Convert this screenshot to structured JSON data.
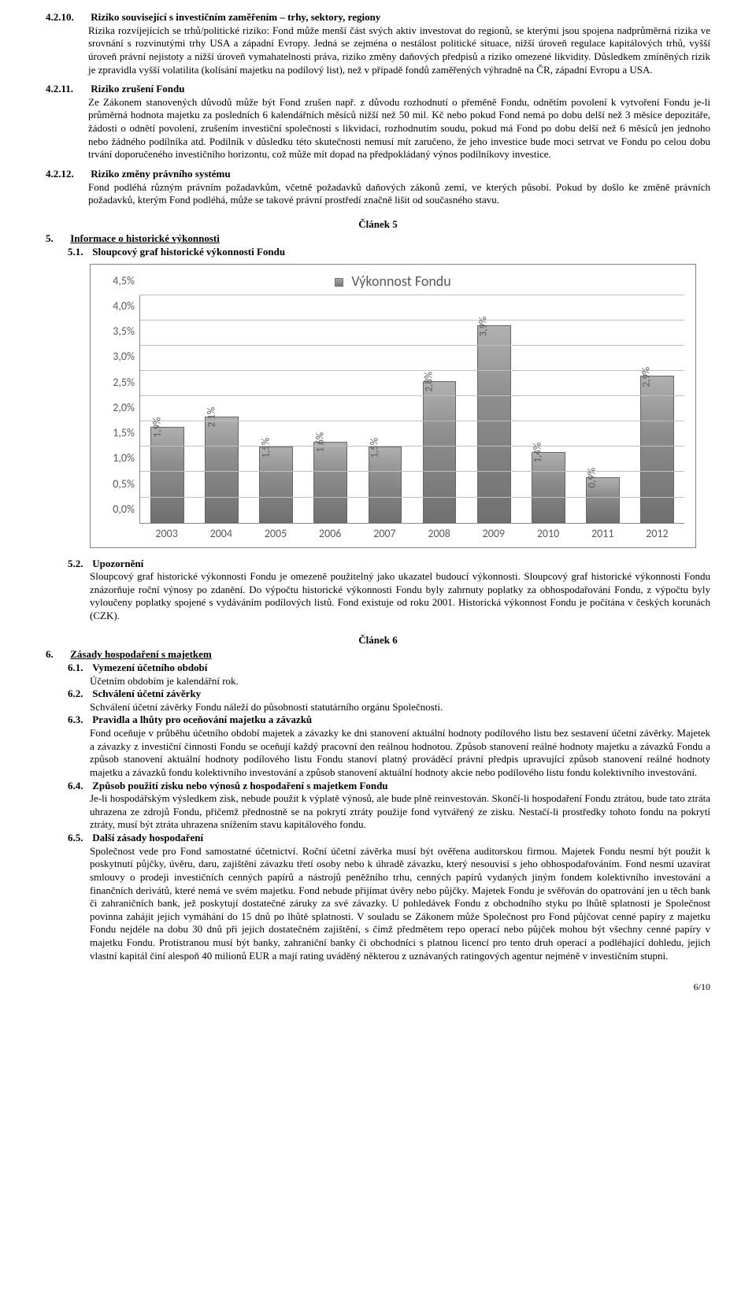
{
  "sec4210": {
    "num": "4.2.10.",
    "title": "Riziko související s investičním zaměřením – trhy, sektory, regiony",
    "body": "Rizika rozvíjejících se trhů/politické riziko: Fond může menší část svých aktiv investovat do regionů, se kterými jsou spojena nadprůměrná rizika ve srovnání s rozvinutými trhy USA a západní Evropy. Jedná se zejména o nestálost politické situace, nižší úroveň regulace kapitálových trhů, vyšší úroveň právní nejistoty a nižší úroveň vymahatelnosti práva, riziko změny daňových předpisů a riziko omezené likvidity. Důsledkem zmíněných rizik je zpravidla vyšší volatilita (kolísání majetku na podílový list), než v případě fondů zaměřených výhradně na ČR, západní Evropu a USA."
  },
  "sec4211": {
    "num": "4.2.11.",
    "title": "Riziko zrušení Fondu",
    "body": "Ze Zákonem stanovených důvodů  může být Fond zrušen např. z důvodu rozhodnutí o přeměně Fondu, odnětím povolení k vytvoření Fondu je-li průměrná hodnota majetku za posledních 6 kalendářních měsíců nižší než 50 mil. Kč nebo pokud Fond nemá po dobu delší než 3 měsíce depozitáře, žádosti o odnětí povolení, zrušením investiční společnosti s likvidací, rozhodnutím soudu, pokud má Fond po dobu delší než 6 měsíců jen jednoho nebo žádného podílníka  atd. Podílník v důsledku této skutečnosti nemusí mít zaručeno, že jeho investice bude moci setrvat ve Fondu po celou dobu trvání doporučeného investičního horizontu, což může mít dopad na předpokládaný výnos podílníkovy investice."
  },
  "sec4212": {
    "num": "4.2.12.",
    "title": "Riziko změny právního systému",
    "body": "Fond podléhá různým právním požadavkům, včetně požadavků daňových zákonů zemí, ve kterých působí. Pokud by došlo ke změně právních požadavků, kterým Fond podléhá, může se takové právní prostředí značně lišit od současného stavu."
  },
  "article5": "Článek 5",
  "sec5": {
    "num": "5.",
    "title": "Informace o historické výkonnosti"
  },
  "sec51": {
    "num": "5.1.",
    "title": "Sloupcový graf historické výkonnosti Fondu"
  },
  "sec52": {
    "num": "5.2.",
    "title": "Upozornění",
    "body": "Sloupcový graf historické výkonnosti Fondu je omezeně použitelný jako ukazatel budoucí výkonnosti. Sloupcový graf historické výkonnosti Fondu znázorňuje roční výnosy po zdanění. Do výpočtu historické výkonnosti Fondu byly zahrnuty poplatky za obhospodařování Fondu, z výpočtu byly vyloučeny poplatky spojené s vydáváním podílových listů. Fond existuje od roku 2001. Historická výkonnost Fondu je počítána v českých korunách (CZK)."
  },
  "article6": "Článek 6",
  "sec6": {
    "num": "6.",
    "title": "Zásady hospodaření s majetkem"
  },
  "sec61": {
    "num": "6.1.",
    "title": "Vymezení účetního období",
    "body": "Účetním obdobím je kalendářní rok."
  },
  "sec62": {
    "num": "6.2.",
    "title": "Schválení účetní závěrky",
    "body": "Schválení účetní závěrky Fondu náleží do působnosti statutárního orgánu Společnosti."
  },
  "sec63": {
    "num": "6.3.",
    "title": "Pravidla a lhůty pro oceňování majetku a závazků",
    "body": "Fond oceňuje v průběhu účetního období majetek a závazky ke dni stanovení aktuální hodnoty podílového listu bez sestavení účetní závěrky. Majetek a závazky z investiční činnosti Fondu se oceňují každý pracovní den reálnou hodnotou. Způsob stanovení reálné hodnoty majetku a závazků Fondu a způsob stanovení aktuální hodnoty podílového listu Fondu stanoví platný prováděcí právní předpis upravující způsob stanovení reálné hodnoty majetku a závazků fondu kolektivního investování a způsob stanovení aktuální hodnoty akcie nebo podílového listu fondu kolektivního investování."
  },
  "sec64": {
    "num": "6.4.",
    "title": "Způsob použití zisku nebo výnosů z hospodaření s majetkem Fondu",
    "body": "Je-li hospodářským výsledkem zisk, nebude použit k výplatě výnosů, ale bude plně reinvestován. Skončí-li hospodaření Fondu ztrátou, bude tato ztráta uhrazena ze zdrojů Fondu, přičemž přednostně se na pokrytí ztráty použije fond vytvářený ze zisku. Nestačí-li prostředky tohoto fondu na pokrytí ztráty, musí být ztráta uhrazena snížením stavu kapitálového fondu."
  },
  "sec65": {
    "num": "6.5.",
    "title": "Další zásady hospodaření",
    "body": "Společnost vede pro Fond samostatné účetnictví. Roční účetní závěrka musí být ověřena auditorskou firmou. Majetek Fondu nesmí být použit k poskytnutí půjčky, úvěru, daru, zajištění závazku třetí osoby nebo k úhradě závazku, který nesouvisí s jeho obhospodařováním. Fond nesmí uzavírat smlouvy o prodeji investičních cenných papírů a nástrojů peněžního trhu, cenných papírů vydaných jiným fondem kolektivního investování a finančních derivátů, které nemá ve svém majetku. Fond nebude přijímat úvěry nebo půjčky. Majetek Fondu je svěřován do opatrování jen u těch bank či zahraničních bank, jež poskytují dostatečné záruky za své závazky. U pohledávek Fondu z obchodního styku po lhůtě splatnosti je Společnost povinna zahájit jejich vymáhání do 15 dnů po lhůtě splatnosti. V souladu se Zákonem může Společnost pro Fond půjčovat cenné papíry z majetku Fondu nejdéle na dobu 30 dnů při jejich dostatečném zajištění, s čímž předmětem repo operací nebo půjček mohou být všechny cenné papíry v majetku Fondu. Protistranou musí být banky, zahraniční banky či obchodníci s platnou licencí pro tento druh operací a podléhající dohledu, jejich vlastní kapitál činí alespoň 40 milionů EUR a mají rating uváděný některou z uznávaných ratingových agentur nejméně v investičním stupni."
  },
  "pagenum": "6/10",
  "chart": {
    "title": "Výkonnost Fondu",
    "type": "bar",
    "categories": [
      "2003",
      "2004",
      "2005",
      "2006",
      "2007",
      "2008",
      "2009",
      "2010",
      "2011",
      "2012"
    ],
    "values": [
      1.9,
      2.1,
      1.5,
      1.6,
      1.5,
      2.8,
      3.9,
      1.4,
      0.9,
      2.9
    ],
    "value_labels": [
      "1,9%",
      "2,1%",
      "1,5%",
      "1,6%",
      "1,5%",
      "2,8%",
      "3,9%",
      "1,4%",
      "0,9%",
      "2,9%"
    ],
    "ymax": 4.5,
    "ytick_step": 0.5,
    "yticks": [
      "0,0%",
      "0,5%",
      "1,0%",
      "1,5%",
      "2,0%",
      "2,5%",
      "3,0%",
      "3,5%",
      "4,0%",
      "4,5%"
    ],
    "bar_color": "#8c8c8c",
    "grid_color": "#bfbfbf",
    "axis_font_color": "#595959",
    "background_color": "#ffffff",
    "border_color": "#808080",
    "title_fontsize": 18,
    "label_fontsize": 14
  }
}
